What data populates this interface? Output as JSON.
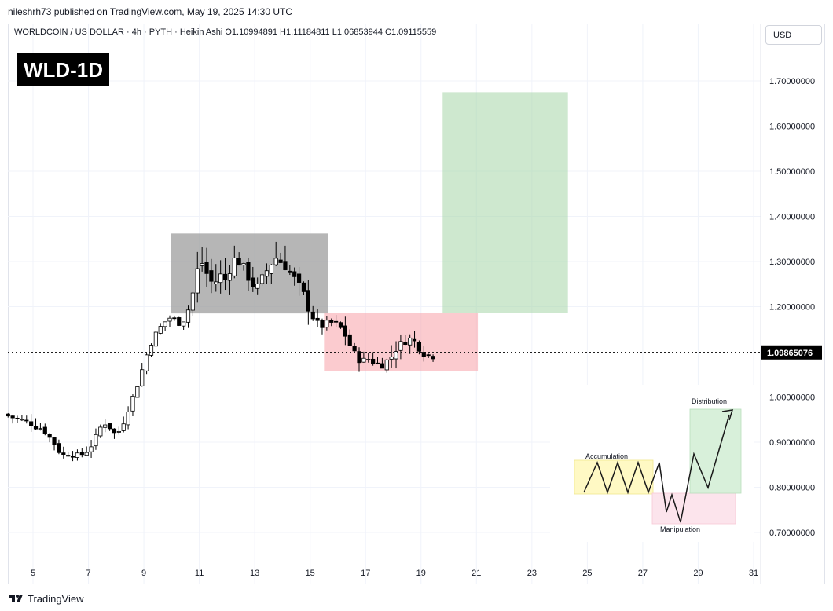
{
  "header": {
    "publisher": "nileshrh73 published on TradingView.com, May 19, 2025 14:30 UTC",
    "symbol_line": "WORLDCOIN / US DOLLAR · 4h · PYTH · Heikin Ashi  O1.10994891  H1.11184811  L1.06853944  C1.09115559",
    "currency": "USD"
  },
  "badge": {
    "text": "WLD-1D"
  },
  "footer": {
    "brand": "TradingView"
  },
  "chart_data": {
    "type": "candlestick",
    "symbol": "WORLDCOIN / US DOLLAR",
    "interval": "4h",
    "source": "PYTH",
    "chart_style": "Heikin Ashi",
    "ohlc_last": {
      "open": 1.10994891,
      "high": 1.11184811,
      "low": 1.06853944,
      "close": 1.09115559
    },
    "current_price": "1.09865076",
    "current_price_value": 1.09865076,
    "ylim": [
      0.65,
      1.78
    ],
    "xlim": [
      4.1,
      31.3
    ],
    "y_ticks": [
      "1.70000000",
      "1.60000000",
      "1.50000000",
      "1.40000000",
      "1.30000000",
      "1.20000000",
      "1.00000000",
      "0.90000000",
      "0.80000000",
      "0.70000000"
    ],
    "y_tick_values": [
      1.7,
      1.6,
      1.5,
      1.4,
      1.3,
      1.2,
      1.0,
      0.9,
      0.8,
      0.7
    ],
    "x_ticks": [
      "5",
      "7",
      "9",
      "11",
      "13",
      "15",
      "17",
      "19",
      "21",
      "23",
      "25",
      "27",
      "29",
      "31"
    ],
    "x_tick_values": [
      5,
      7,
      9,
      11,
      13,
      15,
      17,
      19,
      21,
      23,
      25,
      27,
      29,
      31
    ],
    "grid": true,
    "zones": [
      {
        "name": "accumulation-range",
        "x0": 9.98,
        "x1": 15.65,
        "y0": 1.185,
        "y1": 1.362,
        "color": "#9e9e9e"
      },
      {
        "name": "manipulation-zone",
        "x0": 15.5,
        "x1": 21.05,
        "y0": 1.058,
        "y1": 1.186,
        "color": "#f7a1a8"
      },
      {
        "name": "distribution-target",
        "x0": 19.78,
        "x1": 24.3,
        "y0": 1.186,
        "y1": 1.675,
        "color": "#a5d6a7"
      }
    ],
    "trend_points": [
      [
        4.1,
        0.962
      ],
      [
        4.4,
        0.955
      ],
      [
        4.7,
        0.95
      ],
      [
        5.0,
        0.945
      ],
      [
        5.2,
        0.935
      ],
      [
        5.5,
        0.93
      ],
      [
        5.7,
        0.915
      ],
      [
        5.9,
        0.9
      ],
      [
        6.1,
        0.88
      ],
      [
        6.3,
        0.87
      ],
      [
        6.5,
        0.875
      ],
      [
        6.7,
        0.87
      ],
      [
        6.9,
        0.872
      ],
      [
        7.1,
        0.88
      ],
      [
        7.3,
        0.895
      ],
      [
        7.5,
        0.92
      ],
      [
        7.7,
        0.945
      ],
      [
        7.9,
        0.935
      ],
      [
        8.1,
        0.92
      ],
      [
        8.3,
        0.925
      ],
      [
        8.5,
        0.955
      ],
      [
        8.7,
        0.99
      ],
      [
        8.9,
        1.02
      ],
      [
        9.1,
        1.06
      ],
      [
        9.3,
        1.1
      ],
      [
        9.5,
        1.13
      ],
      [
        9.7,
        1.15
      ],
      [
        9.9,
        1.165
      ],
      [
        10.1,
        1.175
      ],
      [
        10.3,
        1.17
      ],
      [
        10.5,
        1.16
      ],
      [
        10.7,
        1.18
      ],
      [
        10.9,
        1.22
      ],
      [
        11.1,
        1.28
      ],
      [
        11.3,
        1.3
      ],
      [
        11.5,
        1.26
      ],
      [
        11.7,
        1.25
      ],
      [
        11.9,
        1.27
      ],
      [
        12.1,
        1.26
      ],
      [
        12.3,
        1.29
      ],
      [
        12.5,
        1.31
      ],
      [
        12.7,
        1.29
      ],
      [
        12.9,
        1.27
      ],
      [
        13.1,
        1.25
      ],
      [
        13.3,
        1.24
      ],
      [
        13.5,
        1.27
      ],
      [
        13.7,
        1.29
      ],
      [
        13.9,
        1.31
      ],
      [
        14.1,
        1.3
      ],
      [
        14.3,
        1.29
      ],
      [
        14.5,
        1.27
      ],
      [
        14.7,
        1.25
      ],
      [
        14.9,
        1.23
      ],
      [
        15.1,
        1.2
      ],
      [
        15.3,
        1.175
      ],
      [
        15.5,
        1.155
      ],
      [
        15.7,
        1.16
      ],
      [
        15.9,
        1.165
      ],
      [
        16.1,
        1.16
      ],
      [
        16.3,
        1.15
      ],
      [
        16.5,
        1.13
      ],
      [
        16.7,
        1.1
      ],
      [
        16.9,
        1.085
      ],
      [
        17.1,
        1.08
      ],
      [
        17.3,
        1.085
      ],
      [
        17.5,
        1.075
      ],
      [
        17.7,
        1.07
      ],
      [
        17.9,
        1.078
      ],
      [
        18.1,
        1.09
      ],
      [
        18.3,
        1.11
      ],
      [
        18.5,
        1.12
      ],
      [
        18.7,
        1.13
      ],
      [
        18.9,
        1.125
      ],
      [
        19.1,
        1.11
      ],
      [
        19.3,
        1.095
      ],
      [
        19.5,
        1.092
      ]
    ],
    "schematic": {
      "labels": [
        "Accumulation",
        "Manipulation",
        "Distribution"
      ]
    }
  },
  "colors": {
    "bull": "#ffffff",
    "bear": "#000000",
    "grid": "#f0f3fa",
    "price_line": "#000000",
    "price_tag_bg": "#000000",
    "accumulation_fill": "#fff9c4",
    "manipulation_fill": "#fce4ec",
    "distribution_fill": "#d8f0da"
  }
}
